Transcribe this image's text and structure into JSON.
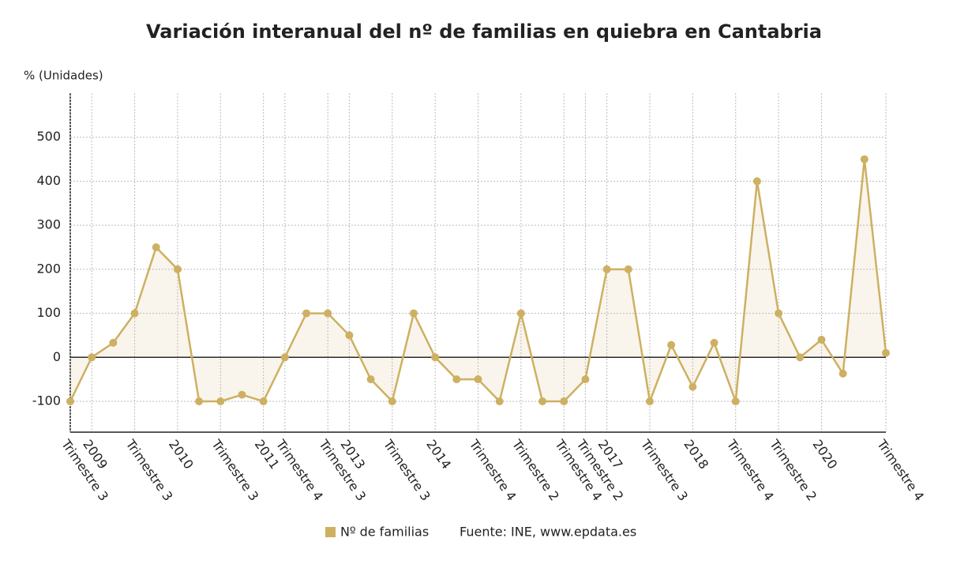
{
  "chart_data": {
    "type": "line",
    "title": "Variación interanual del nº de familias en quiebra en Cantabria",
    "y_label": "% (Unidades)",
    "source": "Fuente: INE, www.epdata.es",
    "categories": [
      "Trimestre 3",
      "2009",
      null,
      "Trimestre 3",
      null,
      "2010",
      null,
      "Trimestre 3",
      null,
      "2011",
      "Trimestre 4",
      null,
      "Trimestre 3",
      "2013",
      null,
      "Trimestre 3",
      null,
      "2014",
      null,
      "Trimestre 4",
      null,
      "Trimestre 2",
      null,
      "Trimestre 4",
      "Trimestre 2",
      "2017",
      null,
      "Trimestre 3",
      null,
      "2018",
      null,
      "Trimestre 4",
      null,
      "Trimestre 2",
      null,
      "2020",
      null,
      null,
      "Trimestre 4"
    ],
    "series": [
      {
        "name": "Nº de familias",
        "color": "#cdb062",
        "values": [
          -100,
          0,
          33,
          100,
          250,
          200,
          -100,
          -100,
          -85,
          -100,
          0,
          100,
          100,
          50,
          -50,
          -100,
          100,
          0,
          -50,
          -50,
          -100,
          100,
          -100,
          -100,
          -50,
          200,
          200,
          -100,
          28,
          -67,
          33,
          -100,
          400,
          100,
          0,
          40,
          -37,
          450,
          10
        ]
      }
    ],
    "ylim": [
      -170,
      600
    ],
    "yticks": [
      -100,
      0,
      100,
      200,
      300,
      400,
      500
    ],
    "grid": true
  }
}
